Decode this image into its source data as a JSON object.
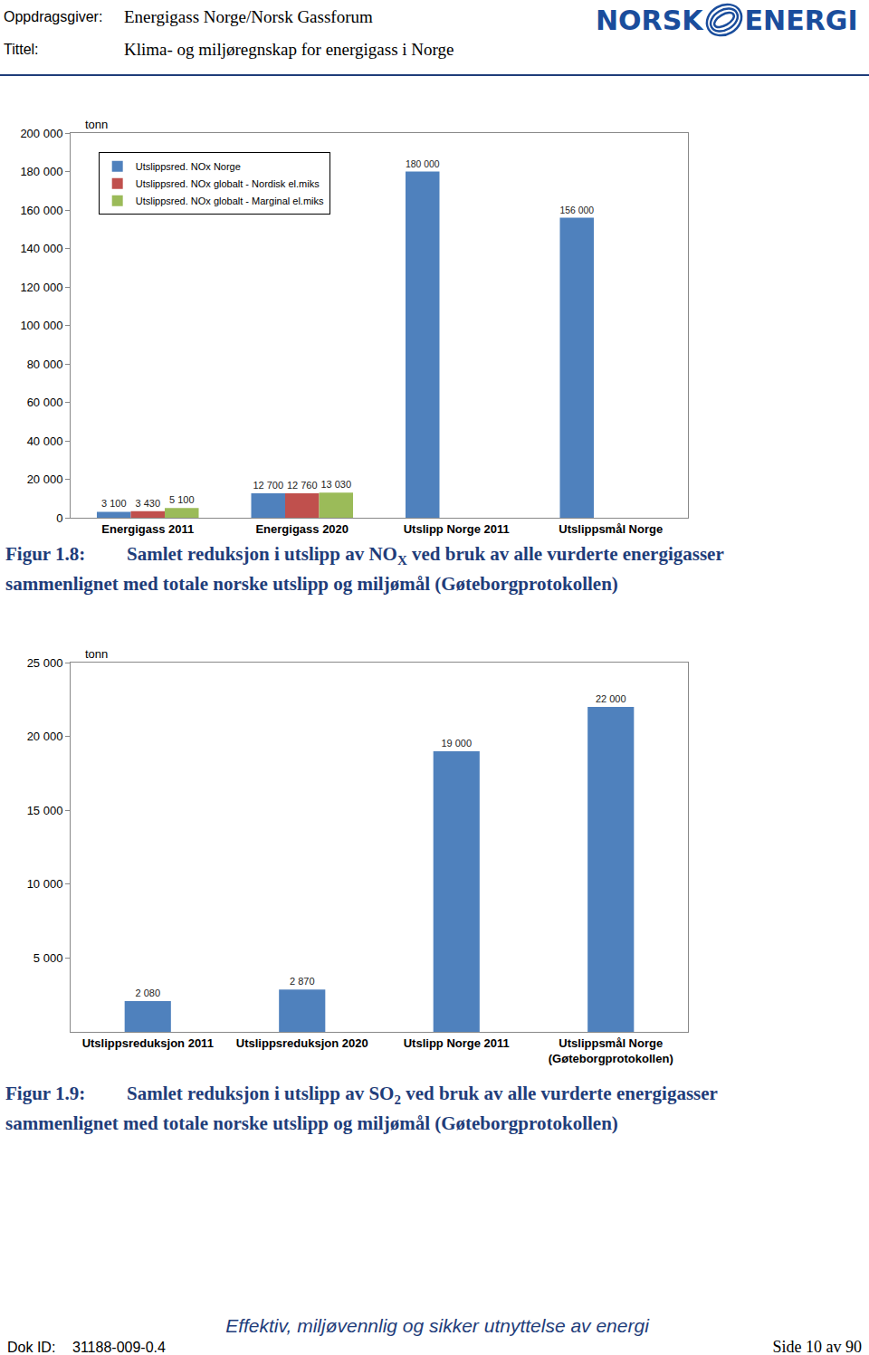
{
  "header": {
    "client_label": "Oppdragsgiver:",
    "client": "Energigass Norge/Norsk Gassforum",
    "title_label": "Tittel:",
    "title": "Klima- og miljøregnskap for energigass i Norge",
    "logo": [
      "NORSK",
      "ENERGI"
    ]
  },
  "chart_data": [
    {
      "type": "bar",
      "ylabel": "tonn",
      "categories": [
        "Energigass 2011",
        "Energigass 2020",
        "Utslipp Norge 2011",
        "Utslippsmål Norge"
      ],
      "series": [
        {
          "name": "Utslippsred. NOx Norge",
          "color": "#4f81bd",
          "values": [
            3100,
            12700,
            180000,
            156000
          ],
          "value_labels": [
            "3 100",
            "12 700",
            "180 000",
            "156 000"
          ]
        },
        {
          "name": "Utslippsred. NOx globalt - Nordisk el.miks",
          "color": "#c0504d",
          "values": [
            3430,
            12760,
            null,
            null
          ],
          "value_labels": [
            "3 430",
            "12 760",
            null,
            null
          ]
        },
        {
          "name": "Utslippsred. NOx globalt - Marginal el.miks",
          "color": "#9bbb59",
          "values": [
            5100,
            13030,
            null,
            null
          ],
          "value_labels": [
            "5 100",
            "13 030",
            null,
            null
          ]
        }
      ],
      "ylim": [
        0,
        200000
      ],
      "yticks": [
        0,
        {
          "value": 20000,
          "label": "20 000"
        },
        {
          "value": 40000,
          "label": "40 000"
        },
        {
          "value": 60000,
          "label": "60 000"
        },
        {
          "value": 80000,
          "label": "80 000"
        },
        {
          "value": 100000,
          "label": "100 000"
        },
        {
          "value": 120000,
          "label": "120 000"
        },
        {
          "value": 140000,
          "label": "140 000"
        },
        {
          "value": 160000,
          "label": "160 000"
        },
        {
          "value": 180000,
          "label": "180 000"
        },
        {
          "value": 200000,
          "label": "200 000"
        }
      ],
      "grid": false,
      "legend": "upper left",
      "data_labels": true
    },
    {
      "type": "bar",
      "ylabel": "tonn",
      "categories": [
        "Utslippsreduksjon 2011",
        "Utslippsreduksjon 2020",
        "Utslipp Norge 2011",
        "Utslippsmål Norge\n(Gøteborgprotokollen)"
      ],
      "values": [
        2080,
        2870,
        19000,
        22000
      ],
      "value_labels": [
        "2 080",
        "2 870",
        "19 000",
        "22 000"
      ],
      "color": "#4f81bd",
      "ylim": [
        0,
        25000
      ],
      "yticks": [
        {
          "value": 5000,
          "label": "5 000"
        },
        {
          "value": 10000,
          "label": "10 000"
        },
        {
          "value": 15000,
          "label": "15 000"
        },
        {
          "value": 20000,
          "label": "20 000"
        },
        {
          "value": 25000,
          "label": "25 000"
        }
      ],
      "grid": false,
      "data_labels": true
    }
  ],
  "figures": [
    {
      "label": "Figur 1.8:",
      "text_before": "Samlet reduksjon i utslipp av NO",
      "text_sub": "X",
      "text_after": " ved bruk av alle vurderte energigasser sammenlignet med totale norske utslipp og miljømål (Gøteborgprotokollen)"
    },
    {
      "label": "Figur 1.9:",
      "text_before": "Samlet reduksjon i utslipp av SO",
      "text_sub": "2",
      "text_after": " ved bruk av alle vurderte energigasser sammenlignet med totale norske utslipp og miljømål (Gøteborgprotokollen)"
    }
  ],
  "footer": {
    "slogan": "Effektiv, miljøvennlig og sikker utnyttelse av energi",
    "doc_label": "Dok ID:",
    "doc_id": "31188-009-0.4",
    "page": "Side 10 av 90"
  }
}
